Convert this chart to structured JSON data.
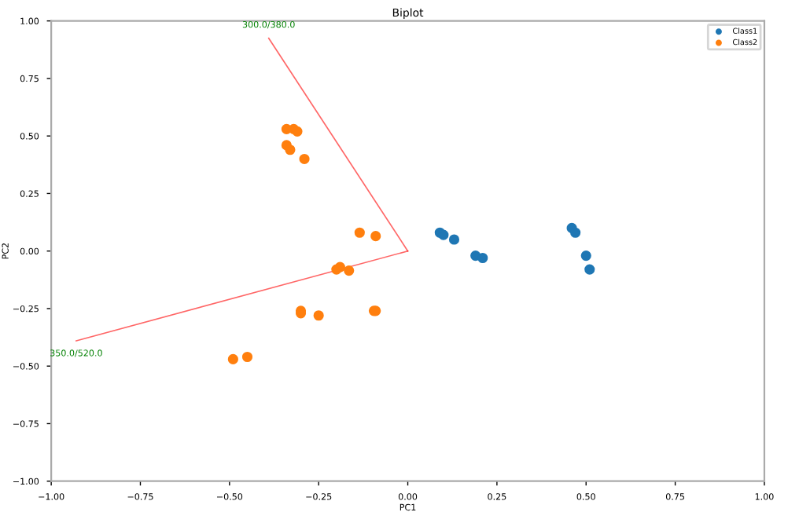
{
  "chart_data": {
    "type": "scatter",
    "title": "Biplot",
    "xlabel": "PC1",
    "ylabel": "PC2",
    "xlim": [
      -1.0,
      1.0
    ],
    "ylim": [
      -1.0,
      1.0
    ],
    "xticks": [
      {
        "value": -1.0,
        "label": "−1.00"
      },
      {
        "value": -0.75,
        "label": "−0.75"
      },
      {
        "value": -0.5,
        "label": "−0.50"
      },
      {
        "value": -0.25,
        "label": "−0.25"
      },
      {
        "value": 0.0,
        "label": "0.00"
      },
      {
        "value": 0.25,
        "label": "0.25"
      },
      {
        "value": 0.5,
        "label": "0.50"
      },
      {
        "value": 0.75,
        "label": "0.75"
      },
      {
        "value": 1.0,
        "label": "1.00"
      }
    ],
    "yticks": [
      {
        "value": -1.0,
        "label": "−1.00"
      },
      {
        "value": -0.75,
        "label": "−0.75"
      },
      {
        "value": -0.5,
        "label": "−0.50"
      },
      {
        "value": -0.25,
        "label": "−0.25"
      },
      {
        "value": 0.0,
        "label": "0.00"
      },
      {
        "value": 0.25,
        "label": "0.25"
      },
      {
        "value": 0.5,
        "label": "0.50"
      },
      {
        "value": 0.75,
        "label": "0.75"
      },
      {
        "value": 1.0,
        "label": "1.00"
      }
    ],
    "marker": "circle",
    "legend": "top right",
    "grid": false,
    "series": [
      {
        "name": "Class1",
        "color": "#1f77b4",
        "x": [
          0.09,
          0.1,
          0.13,
          0.19,
          0.21,
          0.46,
          0.47,
          0.5,
          0.51
        ],
        "values": [
          0.08,
          0.07,
          0.05,
          -0.02,
          -0.03,
          0.1,
          0.08,
          -0.02,
          -0.08
        ]
      },
      {
        "name": "Class2",
        "color": "#ff7f0e",
        "x": [
          -0.34,
          -0.32,
          -0.31,
          -0.34,
          -0.33,
          -0.29,
          -0.135,
          -0.09,
          -0.19,
          -0.2,
          -0.165,
          -0.3,
          -0.3,
          -0.25,
          -0.09,
          -0.095,
          -0.49,
          -0.45
        ],
        "values": [
          0.53,
          0.53,
          0.52,
          0.46,
          0.44,
          0.4,
          0.08,
          0.065,
          -0.07,
          -0.08,
          -0.085,
          -0.26,
          -0.27,
          -0.28,
          -0.26,
          -0.26,
          -0.47,
          -0.46
        ]
      },
      {
        "type": "line",
        "marker": "none",
        "color": "#ff0000",
        "x": [
          0,
          -0.39
        ],
        "values": [
          0,
          0.925
        ]
      },
      {
        "type": "line",
        "marker": "none",
        "color": "#ff0000",
        "x": [
          0,
          -0.93
        ],
        "values": [
          0,
          -0.39
        ]
      }
    ],
    "annotations": [
      {
        "text": "300.0/380.0",
        "x": -0.39,
        "y": 0.925
      },
      {
        "text": "350.0/520.0",
        "x": -0.93,
        "y": -0.39
      }
    ]
  }
}
